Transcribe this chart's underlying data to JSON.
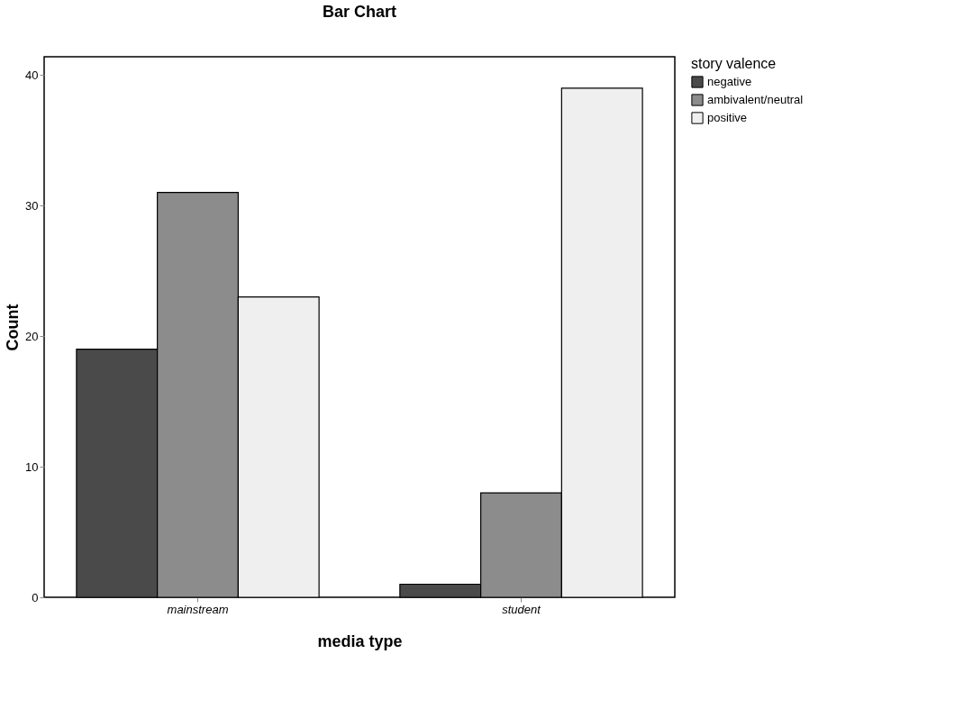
{
  "chart_data": {
    "type": "bar",
    "title": "Bar Chart",
    "xlabel": "media type",
    "ylabel": "Count",
    "legend_title": "story valence",
    "categories": [
      "mainstream",
      "student"
    ],
    "series": [
      {
        "name": "negative",
        "color": "#4a4a4a",
        "values": [
          19,
          1
        ]
      },
      {
        "name": "ambivalent/neutral",
        "color": "#8c8c8c",
        "values": [
          31,
          8
        ]
      },
      {
        "name": "positive",
        "color": "#efefef",
        "values": [
          23,
          39
        ]
      }
    ],
    "ylim": [
      0,
      41.4
    ],
    "yticks": [
      0,
      10,
      20,
      30,
      40
    ],
    "grid": false,
    "legend": "top right"
  }
}
